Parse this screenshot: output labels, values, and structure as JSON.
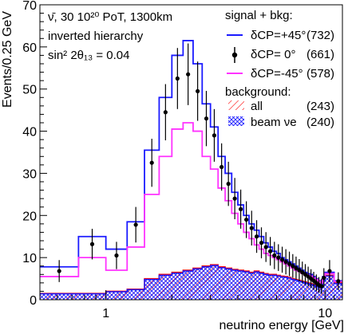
{
  "chart_data": {
    "type": "line",
    "xscale": "log",
    "xlim": [
      0.5,
      12
    ],
    "ylim": [
      0,
      70
    ],
    "xlabel": "neutrino energy [GeV]",
    "ylabel": "Events/0.25 GeV",
    "x_ticks": [
      1,
      10
    ],
    "x_tick_labels": [
      "1",
      "10"
    ],
    "y_ticks": [
      0,
      10,
      20,
      30,
      40,
      50,
      60,
      70
    ],
    "y_tick_labels": [
      "0",
      "10",
      "20",
      "30",
      "40",
      "50",
      "60",
      "70"
    ],
    "annotation": {
      "line1": "ν̄,  30 10²⁰ PoT, 1300km",
      "line2": "inverted hierarchy",
      "line3": "sin² 2θ₁₃ = 0.04"
    },
    "legend": {
      "header_signal": "signal + bkg:",
      "header_background": "background:",
      "entries": [
        {
          "label": "δCP=+45°",
          "count": "(732)"
        },
        {
          "label": "δCP= 0°",
          "count": "(661)"
        },
        {
          "label": "δCP=-45°",
          "count": "(578)"
        },
        {
          "label": "all",
          "count": "(243)"
        },
        {
          "label": "beam νe",
          "count": "(240)"
        }
      ]
    },
    "bin_edges": [
      0.5,
      0.75,
      1.0,
      1.25,
      1.5,
      1.75,
      2.0,
      2.25,
      2.5,
      2.75,
      3.0,
      3.25,
      3.5,
      3.75,
      4.0,
      4.25,
      4.5,
      4.75,
      5.0,
      5.25,
      5.5,
      5.75,
      6.0,
      6.25,
      6.5,
      6.75,
      7.0,
      7.25,
      7.5,
      7.75,
      8.0,
      8.25,
      8.5,
      8.75,
      9.0,
      9.25,
      9.5,
      9.75,
      10.0,
      11.0,
      12.0
    ],
    "series": [
      {
        "name": "δCP=+45°",
        "color": "#1a1aff",
        "style": "step",
        "values": [
          7.8,
          15.0,
          12.0,
          18.5,
          35.5,
          48.0,
          58.0,
          61.5,
          56.0,
          46.5,
          41.0,
          34.0,
          30.0,
          25.5,
          22.5,
          20.0,
          18.0,
          16.5,
          15.0,
          13.5,
          12.5,
          11.5,
          11.0,
          10.0,
          9.5,
          9.0,
          8.5,
          8.0,
          7.5,
          7.0,
          6.5,
          6.2,
          6.0,
          5.5,
          5.0,
          4.5,
          4.0,
          5.5,
          6.5,
          4.5
        ]
      },
      {
        "name": "δCP=-45°",
        "color": "#ff33ff",
        "style": "step",
        "values": [
          5.5,
          10.0,
          7.0,
          12.5,
          25.0,
          34.0,
          40.5,
          42.0,
          40.0,
          34.0,
          31.0,
          26.5,
          23.5,
          20.5,
          18.0,
          16.0,
          14.5,
          13.0,
          12.0,
          11.0,
          10.5,
          10.0,
          9.5,
          9.0,
          8.5,
          8.0,
          7.5,
          7.0,
          6.7,
          6.3,
          6.0,
          5.8,
          5.6,
          5.2,
          4.8,
          4.3,
          4.0,
          5.3,
          6.2,
          4.3
        ]
      },
      {
        "name": "δCP= 0°",
        "color": "#000000",
        "style": "points",
        "values": [
          6.8,
          13.2,
          10.5,
          17.8,
          32.5,
          44.5,
          52.5,
          53.5,
          49.5,
          43.0,
          39.0,
          31.5,
          27.5,
          24.0,
          21.5,
          19.0,
          17.0,
          15.0,
          13.5,
          12.5,
          11.5,
          10.5,
          10.0,
          9.5,
          9.0,
          8.5,
          8.0,
          7.5,
          7.0,
          6.5,
          6.0,
          5.5,
          5.0,
          4.5,
          4.0,
          3.5,
          3.2,
          5.2,
          6.8,
          4.4
        ]
      },
      {
        "name": "all",
        "color": "#ff0000",
        "style": "hatch",
        "values": [
          1.5,
          1.5,
          2.0,
          2.5,
          5.0,
          6.0,
          6.5,
          7.0,
          7.5,
          8.0,
          8.3,
          7.8,
          7.5,
          7.2,
          7.0,
          6.8,
          6.5,
          6.8,
          6.5,
          6.2,
          6.0,
          6.0,
          5.8,
          5.6,
          5.5,
          5.3,
          5.0,
          4.8,
          4.6,
          4.4,
          4.2,
          4.0,
          3.8,
          3.6,
          3.4,
          3.2,
          3.0,
          4.8,
          5.8,
          4.0
        ]
      },
      {
        "name": "beam νe",
        "color": "#1a1aff",
        "style": "hatch",
        "values": [
          1.4,
          1.4,
          1.9,
          2.4,
          4.8,
          5.8,
          6.3,
          6.8,
          7.3,
          7.8,
          8.1,
          7.6,
          7.3,
          7.0,
          6.8,
          6.6,
          6.3,
          6.6,
          6.3,
          6.0,
          5.8,
          5.8,
          5.6,
          5.4,
          5.3,
          5.1,
          4.8,
          4.6,
          4.4,
          4.2,
          4.0,
          3.8,
          3.6,
          3.4,
          3.2,
          3.0,
          2.8,
          4.6,
          5.6,
          3.8
        ]
      }
    ]
  }
}
